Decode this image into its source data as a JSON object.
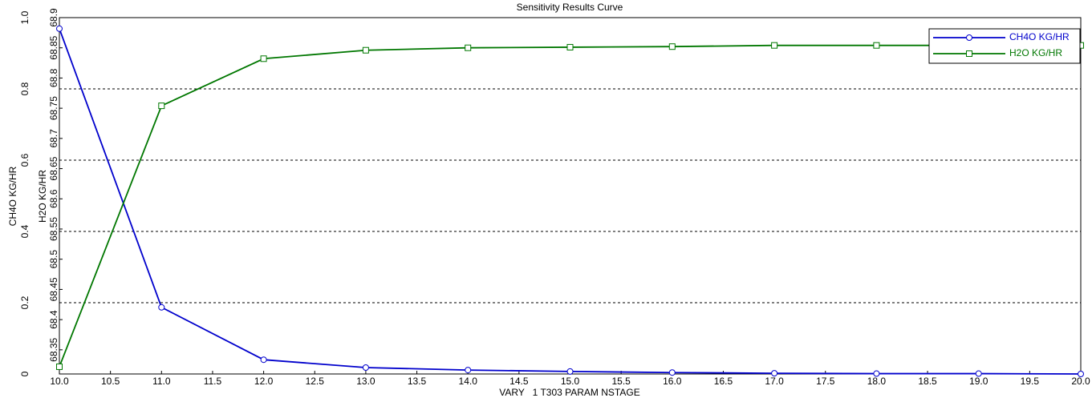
{
  "chart_data": {
    "type": "line",
    "title": "Sensitivity Results Curve",
    "x_label": "VARY   1 T303 PARAM NSTAGE",
    "y_label": "CH4O KG/HR",
    "y2_label": "H2O KG/HR",
    "x": [
      10,
      11,
      12,
      13,
      14,
      15,
      16,
      17,
      18,
      19,
      20
    ],
    "xlim": [
      10,
      20
    ],
    "xticks": [
      {
        "value": 10,
        "label": "10.0"
      },
      {
        "value": 10.5,
        "label": "10.5"
      },
      {
        "value": 11,
        "label": "11.0"
      },
      {
        "value": 11.5,
        "label": "11.5"
      },
      {
        "value": 12,
        "label": "12.0"
      },
      {
        "value": 12.5,
        "label": "12.5"
      },
      {
        "value": 13,
        "label": "13.0"
      },
      {
        "value": 13.5,
        "label": "13.5"
      },
      {
        "value": 14,
        "label": "14.0"
      },
      {
        "value": 14.5,
        "label": "14.5"
      },
      {
        "value": 15,
        "label": "15.0"
      },
      {
        "value": 15.5,
        "label": "15.5"
      },
      {
        "value": 16,
        "label": "16.0"
      },
      {
        "value": 16.5,
        "label": "16.5"
      },
      {
        "value": 17,
        "label": "17.0"
      },
      {
        "value": 17.5,
        "label": "17.5"
      },
      {
        "value": 18,
        "label": "18.0"
      },
      {
        "value": 18.5,
        "label": "18.5"
      },
      {
        "value": 19,
        "label": "19.0"
      },
      {
        "value": 19.5,
        "label": "19.5"
      },
      {
        "value": 20,
        "label": "20.0"
      }
    ],
    "ylim": [
      0,
      1
    ],
    "yticks": [
      0,
      0.2,
      0.4,
      0.6,
      0.8,
      {
        "value": 1,
        "label": "1.0"
      }
    ],
    "y2lim": [
      68.31,
      68.9
    ],
    "y2ticks": [
      68.35,
      68.4,
      68.45,
      68.5,
      68.55,
      68.6,
      68.65,
      68.7,
      68.75,
      68.8,
      68.85,
      68.9
    ],
    "grid": true,
    "legend": "upper right",
    "series": [
      {
        "name": "CH4O KG/HR",
        "color": "#0000cc",
        "marker": "circle",
        "values": [
          0.969,
          0.187,
          0.04,
          0.018,
          0.011,
          0.007,
          0.004,
          0.002,
          0.001,
          0.001,
          0
        ]
      },
      {
        "name": "H2O KG/HR",
        "color": "#007700",
        "marker": "square",
        "axis": "y2",
        "values": [
          68.322,
          68.754,
          68.832,
          68.846,
          68.85,
          68.851,
          68.852,
          68.854,
          68.854,
          68.854,
          68.854
        ]
      }
    ]
  }
}
